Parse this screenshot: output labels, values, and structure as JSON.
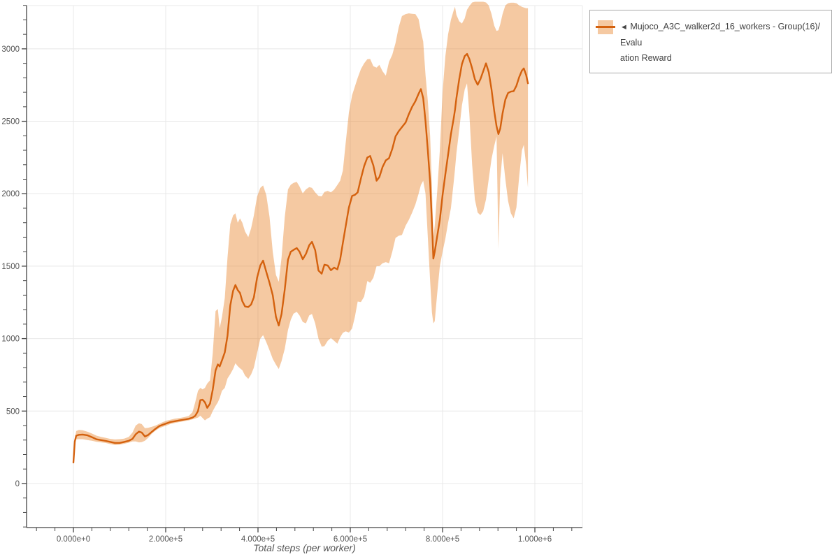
{
  "page": {
    "background": "#ffffff"
  },
  "legend": {
    "toggle_icon": "◄",
    "label_line1": "Mujoco_A3C_walker2d_16_workers - Group(16)/Evalu",
    "label_line2": "ation Reward",
    "full_label": "Mujoco_A3C_walker2d_16_workers - Group(16)/Evaluation Reward"
  },
  "chart_data": {
    "type": "line",
    "title": "",
    "xlabel": "Total steps (per worker)",
    "ylabel": "",
    "grid": true,
    "legend_position": "top-right",
    "series_name": "Mujoco_A3C_walker2d_16_workers - Group(16)/Evaluation Reward",
    "colors": {
      "line": "#d4610e",
      "band": "rgba(230,126,34,0.42)",
      "grid": "#e8e8e8",
      "axis": "#444444",
      "tick_label": "#535353",
      "axis_title": "#555555",
      "legend_border": "#a9a9a9",
      "legend_text": "#404040"
    },
    "xlim": [
      -101500,
      1103000
    ],
    "ylim": [
      -304,
      3337
    ],
    "x_ticks": [
      {
        "v": 0,
        "label": "0.000e+0"
      },
      {
        "v": 200000,
        "label": "2.000e+5"
      },
      {
        "v": 400000,
        "label": "4.000e+5"
      },
      {
        "v": 600000,
        "label": "6.000e+5"
      },
      {
        "v": 800000,
        "label": "8.000e+5"
      },
      {
        "v": 1000000,
        "label": "1.000e+6"
      }
    ],
    "y_ticks": [
      {
        "v": 0,
        "label": "0"
      },
      {
        "v": 500,
        "label": "500"
      },
      {
        "v": 1000,
        "label": "1000"
      },
      {
        "v": 1500,
        "label": "1500"
      },
      {
        "v": 2000,
        "label": "2000"
      },
      {
        "v": 2500,
        "label": "2500"
      },
      {
        "v": 3000,
        "label": "3000"
      }
    ],
    "x_minor_step": 40000,
    "x_minor_range": [
      -80000,
      1080000
    ],
    "y_minor_step": 100,
    "y_minor_range": [
      -300,
      3300
    ],
    "band_series": {
      "x": [
        0,
        3000,
        6000,
        12000,
        20000,
        30000,
        40000,
        50000,
        60000,
        70000,
        80000,
        90000,
        100000,
        110000,
        120000,
        128000,
        135000,
        142000,
        148000,
        155000,
        162000,
        170000,
        178000,
        186000,
        194000,
        202000,
        210000,
        220000,
        230000,
        240000,
        250000,
        258000,
        264000,
        270000,
        275000,
        280000,
        285000,
        290000,
        296000,
        302000,
        308000,
        313000,
        317000,
        322000,
        328000,
        334000,
        340000,
        346000,
        351000,
        356000,
        361000,
        366000,
        372000,
        379000,
        385000,
        391000,
        398000,
        405000,
        411000,
        418000,
        425000,
        432000,
        439000,
        445000,
        451000,
        458000,
        465000,
        471000,
        477000,
        484000,
        490000,
        497000,
        504000,
        511000,
        517000,
        524000,
        531000,
        538000,
        544000,
        551000,
        558000,
        565000,
        572000,
        578000,
        584000,
        590000,
        597000,
        604000,
        610000,
        616000,
        623000,
        630000,
        637000,
        643000,
        650000,
        657000,
        663000,
        670000,
        677000,
        684000,
        691000,
        698000,
        705000,
        712000,
        720000,
        727000,
        734000,
        741000,
        748000,
        753000,
        758000,
        763000,
        768000,
        773000,
        777000,
        780000,
        783000,
        788000,
        794000,
        800000,
        806000,
        812000,
        818000,
        824000,
        827000,
        830000,
        836000,
        842000,
        848000,
        853000,
        858000,
        864000,
        870000,
        876000,
        882000,
        888000,
        894000,
        900000,
        906000,
        912000,
        917000,
        921000,
        925000,
        930000,
        936000,
        942000,
        948000,
        954000,
        960000,
        966000,
        972000,
        976000,
        981000,
        985000
      ],
      "mean": [
        145,
        290,
        330,
        336,
        338,
        333,
        320,
        305,
        300,
        294,
        287,
        280,
        280,
        287,
        295,
        308,
        340,
        358,
        352,
        325,
        335,
        357,
        378,
        396,
        406,
        415,
        424,
        430,
        436,
        441,
        447,
        455,
        467,
        500,
        575,
        578,
        560,
        522,
        552,
        648,
        780,
        822,
        808,
        850,
        905,
        1020,
        1230,
        1330,
        1370,
        1335,
        1315,
        1258,
        1222,
        1218,
        1235,
        1285,
        1420,
        1505,
        1538,
        1460,
        1385,
        1300,
        1150,
        1090,
        1170,
        1340,
        1545,
        1600,
        1612,
        1625,
        1600,
        1548,
        1585,
        1645,
        1668,
        1610,
        1470,
        1448,
        1510,
        1505,
        1472,
        1490,
        1478,
        1545,
        1660,
        1775,
        1905,
        1985,
        1992,
        2010,
        2105,
        2190,
        2250,
        2260,
        2195,
        2090,
        2115,
        2185,
        2230,
        2245,
        2310,
        2395,
        2432,
        2460,
        2492,
        2550,
        2600,
        2638,
        2690,
        2722,
        2660,
        2500,
        2300,
        2080,
        1800,
        1552,
        1600,
        1700,
        1820,
        1990,
        2135,
        2270,
        2410,
        2520,
        2580,
        2660,
        2790,
        2895,
        2950,
        2965,
        2930,
        2865,
        2790,
        2752,
        2790,
        2845,
        2900,
        2840,
        2720,
        2570,
        2465,
        2412,
        2450,
        2555,
        2650,
        2695,
        2705,
        2708,
        2745,
        2805,
        2850,
        2865,
        2820,
        2762
      ],
      "lower": [
        140,
        270,
        305,
        306,
        306,
        300,
        295,
        288,
        284,
        280,
        272,
        266,
        268,
        274,
        282,
        290,
        290,
        284,
        286,
        295,
        315,
        344,
        365,
        382,
        392,
        400,
        410,
        418,
        424,
        430,
        436,
        443,
        449,
        455,
        468,
        452,
        436,
        448,
        458,
        500,
        535,
        560,
        590,
        640,
        660,
        725,
        755,
        790,
        830,
        810,
        795,
        782,
        745,
        722,
        752,
        800,
        900,
        1000,
        1024,
        975,
        920,
        860,
        820,
        790,
        845,
        930,
        1060,
        1130,
        1172,
        1185,
        1160,
        1115,
        1105,
        1160,
        1170,
        1105,
        1000,
        945,
        948,
        985,
        1005,
        985,
        965,
        1008,
        1040,
        1050,
        1042,
        1070,
        1150,
        1256,
        1252,
        1290,
        1398,
        1385,
        1420,
        1500,
        1500,
        1520,
        1528,
        1520,
        1600,
        1695,
        1710,
        1715,
        1780,
        1820,
        1870,
        1925,
        2000,
        2060,
        2090,
        2000,
        1700,
        1400,
        1180,
        1105,
        1120,
        1300,
        1500,
        1600,
        1690,
        1800,
        1900,
        2080,
        2170,
        2280,
        2440,
        2610,
        2720,
        2762,
        2550,
        2200,
        1960,
        1870,
        1852,
        1880,
        1960,
        2100,
        2240,
        2330,
        2395,
        1620,
        2100,
        2280,
        2100,
        1950,
        1865,
        1830,
        1905,
        2120,
        2300,
        2338,
        2200,
        2040
      ],
      "upper": [
        150,
        310,
        362,
        370,
        368,
        358,
        345,
        330,
        322,
        315,
        308,
        304,
        306,
        310,
        322,
        352,
        400,
        416,
        410,
        382,
        384,
        392,
        400,
        412,
        424,
        434,
        440,
        448,
        452,
        458,
        466,
        492,
        560,
        640,
        660,
        650,
        660,
        690,
        712,
        900,
        1190,
        1205,
        1072,
        1150,
        1280,
        1560,
        1790,
        1850,
        1865,
        1800,
        1830,
        1800,
        1740,
        1700,
        1760,
        1850,
        1980,
        2040,
        2057,
        1990,
        1840,
        1600,
        1440,
        1392,
        1560,
        1840,
        2030,
        2062,
        2075,
        2082,
        2050,
        2002,
        2030,
        2046,
        2040,
        2010,
        1985,
        1982,
        2012,
        2020,
        2010,
        2028,
        2060,
        2090,
        2160,
        2350,
        2560,
        2680,
        2740,
        2800,
        2860,
        2900,
        2928,
        2930,
        2880,
        2870,
        2890,
        2845,
        2815,
        2910,
        2960,
        3040,
        3150,
        3226,
        3240,
        3245,
        3242,
        3240,
        3205,
        3120,
        3050,
        2820,
        2640,
        2400,
        2050,
        1700,
        1780,
        2000,
        2300,
        2700,
        2950,
        3100,
        3200,
        3265,
        3290,
        3235,
        3190,
        3175,
        3210,
        3270,
        3295,
        3320,
        3325,
        3325,
        3325,
        3325,
        3320,
        3300,
        3240,
        3160,
        3124,
        3128,
        3170,
        3240,
        3300,
        3315,
        3318,
        3318,
        3315,
        3300,
        3290,
        3285,
        3280,
        3280
      ]
    }
  }
}
